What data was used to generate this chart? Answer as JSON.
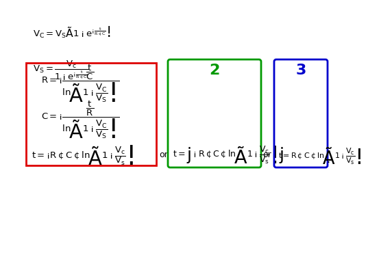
{
  "bg_color": "#ffffff",
  "eq1": "$\\mathbf{V_C = V_S\\left(1 - e^{-\\frac{t}{R \\cdot C}}\\right)}$",
  "eq2": "$\\mathbf{V_S = \\dfrac{V_c}{1 - e^{-\\frac{t}{R \\cdot C}}}}$",
  "eq3_R": "$\\mathbf{R = -\\dfrac{\\dfrac{t}{C}}{ln\\!\\left(1 - \\dfrac{V_C}{V_S}\\right)}}$",
  "eq3_C": "$\\mathbf{C = -\\dfrac{\\dfrac{t}{R}}{ln\\!\\left(1 - \\dfrac{V_C}{V_S}\\right)}}$",
  "eq3_t": "$\\mathbf{t = -R \\cdot C \\cdot ln\\!\\left(1 - \\dfrac{V_c}{V_s}\\right)}$",
  "eq_t2": "$\\mathbf{t = \\left|-R \\cdot C \\cdot ln\\!\\left(1 - \\dfrac{V_c}{V_s}\\right)\\right|}$",
  "eq_t3": "$\\mathbf{t = R \\cdot C \\cdot ln\\!\\left(1 - \\dfrac{V_c}{V_s}\\right)}$",
  "label2": "2",
  "label3": "3",
  "or_text": "or",
  "dot_text": ".",
  "red_box_color": "#dd0000",
  "green_box_color": "#009900",
  "blue_box_color": "#0000cc",
  "text_color": "#000000",
  "eq_fontsize": 9.5,
  "label_fontsize": 16
}
